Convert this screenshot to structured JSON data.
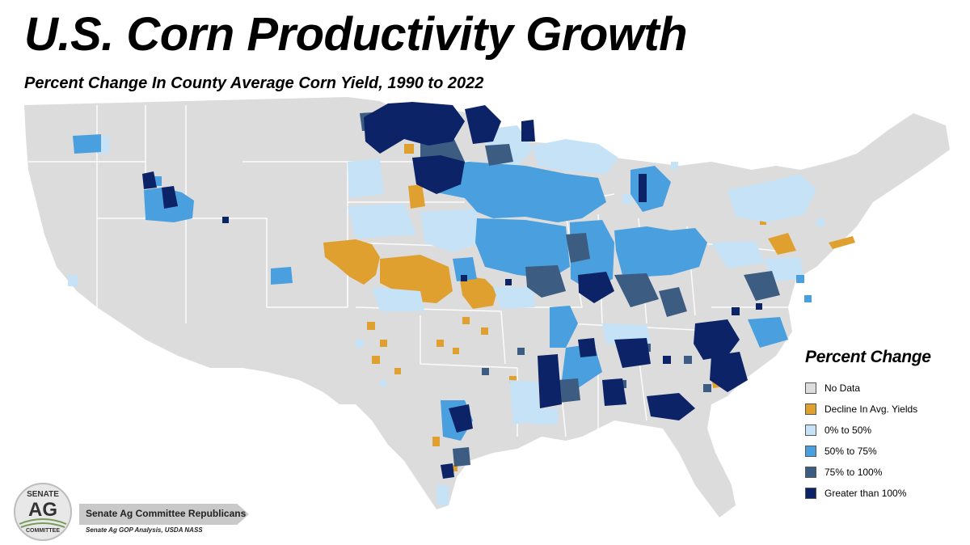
{
  "header": {
    "title": "U.S. Corn Productivity Growth",
    "subtitle": "Percent Change In County Average Corn Yield, 1990 to 2022"
  },
  "legend": {
    "title": "Percent Change",
    "items": [
      {
        "label": "No Data",
        "color": "#dcdcdc"
      },
      {
        "label": "Decline In Avg. Yields",
        "color": "#e0a030"
      },
      {
        "label": "0% to 50%",
        "color": "#c6e2f6"
      },
      {
        "label": "50% to 75%",
        "color": "#4a9fdf"
      },
      {
        "label": "75% to 100%",
        "color": "#3d5c82"
      },
      {
        "label": "Greater than 100%",
        "color": "#0c2467"
      }
    ]
  },
  "map": {
    "region": "Contiguous United States",
    "colors": {
      "land": "#dcdcdc",
      "borders": "#ffffff",
      "decline": "#e0a030",
      "light_blue": "#c6e2f6",
      "mid_blue": "#4a9fdf",
      "slate_blue": "#3d5c82",
      "navy": "#0c2467"
    }
  },
  "logo": {
    "line1": "SENATE",
    "line2": "AG",
    "line3": "COMMITTEE"
  },
  "footer": {
    "org": "Senate Ag Committee Republicans",
    "source": "Senate Ag GOP Analysis, USDA NASS"
  }
}
